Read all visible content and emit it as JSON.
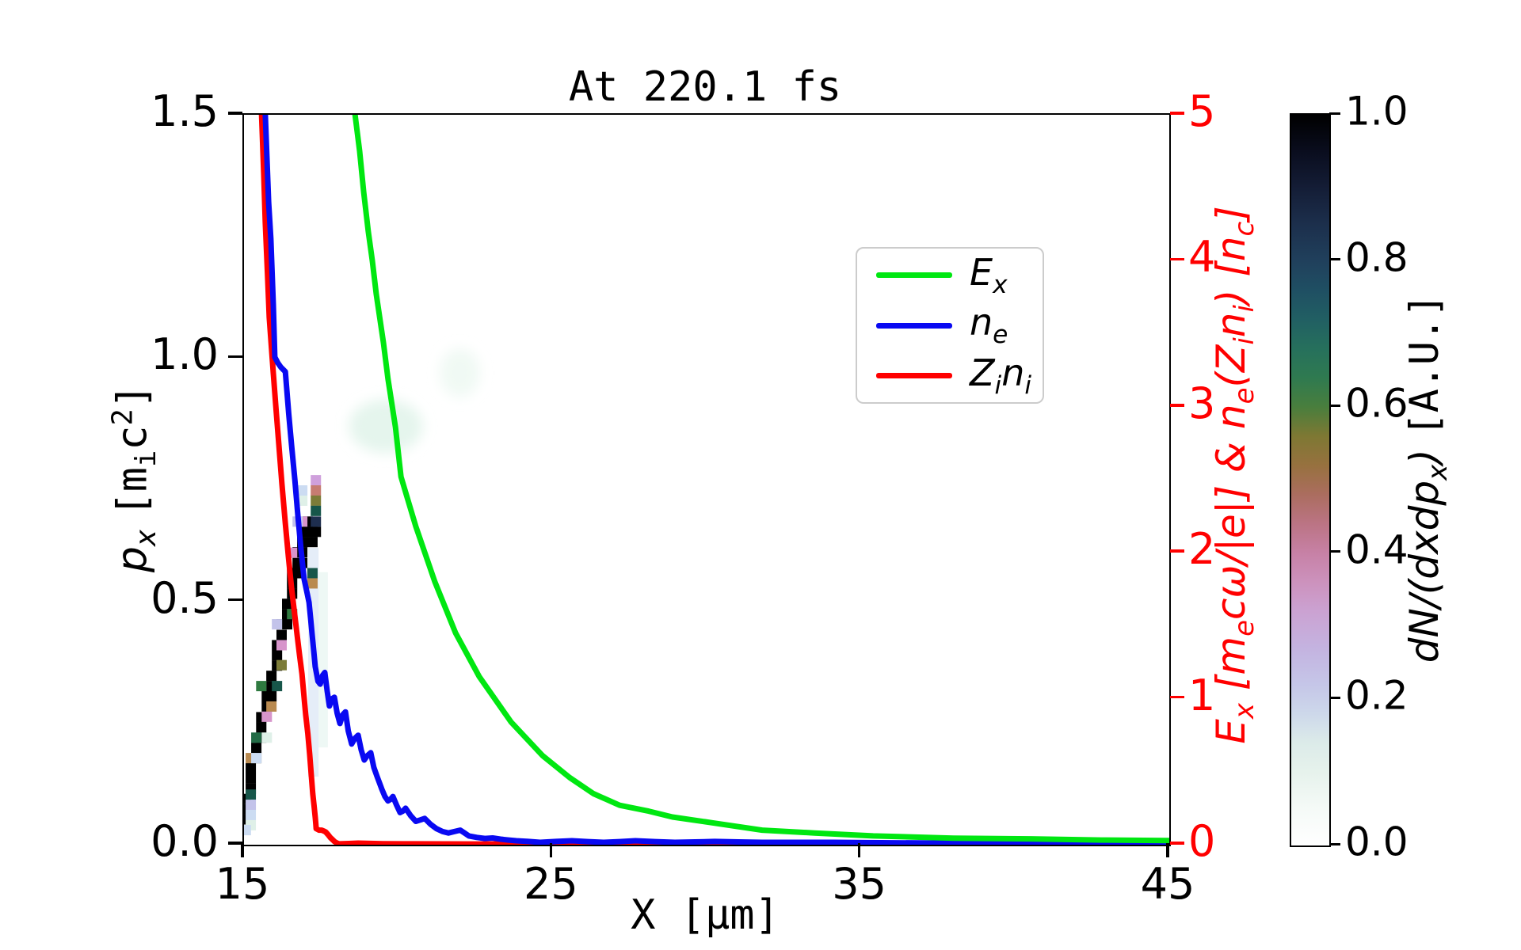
{
  "title": "At 220.1 fs",
  "axes": {
    "x": {
      "label": "X [μm]",
      "range": [
        15,
        45
      ],
      "tick_labels": [
        "15",
        "25",
        "35",
        "45"
      ],
      "tick_values": [
        15,
        25,
        35,
        45
      ]
    },
    "y_left": {
      "label_var": "p_{x}",
      "label_unit": "[m_{i}c^{2}]",
      "range": [
        0,
        1.5
      ],
      "tick_labels": [
        "0.0",
        "0.5",
        "1.0",
        "1.5"
      ],
      "tick_values": [
        0,
        0.5,
        1.0,
        1.5
      ]
    },
    "y_right": {
      "label": "E_{x} [m_{e}cω/|e|] & n_{e}(Z_{i}n_{i}) [n_{c}]",
      "range": [
        0,
        5
      ],
      "tick_labels": [
        "0",
        "1",
        "2",
        "3",
        "4",
        "5"
      ],
      "tick_values": [
        0,
        1,
        2,
        3,
        4,
        5
      ],
      "color": "#ff0000"
    }
  },
  "legend": {
    "entries": [
      {
        "label": "E_{x}",
        "color": "#00e711"
      },
      {
        "label": "n_{e}",
        "color": "#0909f2"
      },
      {
        "label": "Z_{i}n_{i}",
        "color": "#ff0000"
      }
    ]
  },
  "colorbar": {
    "label_var": "dN/(dxdp_{x})",
    "label_unit": "[A.U.]",
    "tick_labels": [
      "0.0",
      "0.2",
      "0.4",
      "0.6",
      "0.8",
      "1.0"
    ],
    "tick_values": [
      0,
      0.2,
      0.4,
      0.6,
      0.8,
      1.0
    ],
    "gradient": [
      [
        0.0,
        "#ffffff"
      ],
      [
        0.05,
        "#f5faf7"
      ],
      [
        0.1,
        "#e6f2ec"
      ],
      [
        0.14,
        "#dcebe9"
      ],
      [
        0.18,
        "#cdd8ea"
      ],
      [
        0.22,
        "#c5c6e8"
      ],
      [
        0.27,
        "#c4b3e0"
      ],
      [
        0.32,
        "#cba2d2"
      ],
      [
        0.36,
        "#cc92bd"
      ],
      [
        0.4,
        "#c781a6"
      ],
      [
        0.44,
        "#bb7484"
      ],
      [
        0.48,
        "#ab6d5f"
      ],
      [
        0.52,
        "#97713f"
      ],
      [
        0.56,
        "#7e7833"
      ],
      [
        0.6,
        "#497e3d"
      ],
      [
        0.64,
        "#2f7a50"
      ],
      [
        0.68,
        "#26705c"
      ],
      [
        0.72,
        "#215f63"
      ],
      [
        0.76,
        "#1f4f63"
      ],
      [
        0.8,
        "#20405c"
      ],
      [
        0.85,
        "#1c2f4c"
      ],
      [
        0.9,
        "#141d36"
      ],
      [
        0.95,
        "#0a0d1e"
      ],
      [
        1.0,
        "#000000"
      ]
    ]
  },
  "chart_data": {
    "type": "line",
    "title": "At 220.1 fs",
    "xlabel": "X [μm]",
    "xlim": [
      15,
      45
    ],
    "ylabel_left": "p_x [m_i c^2]",
    "ylim_left": [
      0,
      1.5
    ],
    "ylabel_right": "E_x [m_e c w/|e|] & n_e(Z_i n_i) [n_c]",
    "ylim_right": [
      0,
      5
    ],
    "grid": false,
    "legend_position": "upper center",
    "series": [
      {
        "name": "E_x",
        "axis": "right",
        "color": "#00e711",
        "width": 7,
        "points": [
          [
            18.6,
            5.0
          ],
          [
            18.75,
            4.75
          ],
          [
            18.88,
            4.47
          ],
          [
            19.03,
            4.2
          ],
          [
            19.16,
            4.0
          ],
          [
            19.29,
            3.77
          ],
          [
            19.52,
            3.44
          ],
          [
            19.67,
            3.19
          ],
          [
            19.91,
            2.86
          ],
          [
            20.09,
            2.52
          ],
          [
            20.57,
            2.18
          ],
          [
            21.19,
            1.8
          ],
          [
            21.86,
            1.45
          ],
          [
            22.63,
            1.15
          ],
          [
            23.66,
            0.84
          ],
          [
            24.68,
            0.61
          ],
          [
            25.56,
            0.46
          ],
          [
            26.33,
            0.35
          ],
          [
            27.18,
            0.27
          ],
          [
            28.12,
            0.23
          ],
          [
            28.89,
            0.19
          ],
          [
            30.18,
            0.15
          ],
          [
            31.8,
            0.1
          ],
          [
            33.5,
            0.08
          ],
          [
            35.4,
            0.06
          ],
          [
            38.0,
            0.045
          ],
          [
            40.5,
            0.04
          ],
          [
            42.8,
            0.032
          ],
          [
            45.0,
            0.028
          ]
        ]
      },
      {
        "name": "n_e",
        "axis": "right",
        "color": "#0909f2",
        "width": 7,
        "points": [
          [
            15.69,
            5.0
          ],
          [
            15.8,
            4.4
          ],
          [
            15.87,
            4.15
          ],
          [
            15.95,
            3.7
          ],
          [
            16.0,
            3.34
          ],
          [
            16.1,
            3.3
          ],
          [
            16.2,
            3.27
          ],
          [
            16.34,
            3.24
          ],
          [
            16.45,
            2.95
          ],
          [
            16.54,
            2.74
          ],
          [
            16.65,
            2.5
          ],
          [
            16.75,
            2.25
          ],
          [
            16.85,
            2.02
          ],
          [
            16.95,
            1.82
          ],
          [
            17.05,
            1.72
          ],
          [
            17.11,
            1.66
          ],
          [
            17.16,
            1.55
          ],
          [
            17.21,
            1.44
          ],
          [
            17.26,
            1.33
          ],
          [
            17.31,
            1.22
          ],
          [
            17.4,
            1.12
          ],
          [
            17.47,
            1.1
          ],
          [
            17.55,
            1.16
          ],
          [
            17.62,
            1.18
          ],
          [
            17.7,
            1.05
          ],
          [
            17.77,
            0.95
          ],
          [
            17.85,
            1.0
          ],
          [
            17.93,
            1.01
          ],
          [
            18.02,
            0.9
          ],
          [
            18.11,
            0.83
          ],
          [
            18.2,
            0.89
          ],
          [
            18.29,
            0.91
          ],
          [
            18.38,
            0.78
          ],
          [
            18.49,
            0.69
          ],
          [
            18.6,
            0.73
          ],
          [
            18.7,
            0.75
          ],
          [
            18.8,
            0.65
          ],
          [
            18.9,
            0.58
          ],
          [
            19.0,
            0.61
          ],
          [
            19.11,
            0.63
          ],
          [
            19.21,
            0.53
          ],
          [
            19.31,
            0.47
          ],
          [
            19.4,
            0.42
          ],
          [
            19.47,
            0.38
          ],
          [
            19.57,
            0.33
          ],
          [
            19.67,
            0.3
          ],
          [
            19.75,
            0.31
          ],
          [
            19.83,
            0.33
          ],
          [
            19.95,
            0.27
          ],
          [
            20.06,
            0.22
          ],
          [
            20.15,
            0.23
          ],
          [
            20.24,
            0.25
          ],
          [
            20.4,
            0.2
          ],
          [
            20.57,
            0.16
          ],
          [
            20.72,
            0.17
          ],
          [
            20.86,
            0.18
          ],
          [
            21.05,
            0.14
          ],
          [
            21.24,
            0.11
          ],
          [
            21.44,
            0.09
          ],
          [
            21.63,
            0.08
          ],
          [
            21.82,
            0.09
          ],
          [
            22.01,
            0.1
          ],
          [
            22.15,
            0.08
          ],
          [
            22.29,
            0.06
          ],
          [
            22.55,
            0.05
          ],
          [
            22.81,
            0.043
          ],
          [
            23.06,
            0.046
          ],
          [
            23.32,
            0.038
          ],
          [
            23.58,
            0.032
          ],
          [
            23.83,
            0.027
          ],
          [
            24.22,
            0.022
          ],
          [
            24.6,
            0.016
          ],
          [
            25.12,
            0.022
          ],
          [
            25.63,
            0.027
          ],
          [
            26.15,
            0.021
          ],
          [
            26.66,
            0.016
          ],
          [
            27.18,
            0.021
          ],
          [
            27.69,
            0.027
          ],
          [
            28.33,
            0.021
          ],
          [
            28.97,
            0.016
          ],
          [
            29.62,
            0.019
          ],
          [
            30.26,
            0.022
          ],
          [
            31.03,
            0.019
          ],
          [
            31.8,
            0.016
          ],
          [
            32.96,
            0.016
          ],
          [
            34.11,
            0.016
          ],
          [
            36.04,
            0.013
          ],
          [
            37.96,
            0.011
          ],
          [
            40.31,
            0.011
          ],
          [
            42.66,
            0.011
          ],
          [
            45.0,
            0.011
          ]
        ]
      },
      {
        "name": "Z_i n_i",
        "axis": "right",
        "color": "#ff0000",
        "width": 7,
        "points": [
          [
            15.57,
            5.0
          ],
          [
            15.64,
            4.6
          ],
          [
            15.69,
            4.26
          ],
          [
            15.76,
            3.92
          ],
          [
            15.82,
            3.61
          ],
          [
            15.89,
            3.4
          ],
          [
            15.95,
            3.23
          ],
          [
            16.04,
            2.98
          ],
          [
            16.13,
            2.74
          ],
          [
            16.23,
            2.47
          ],
          [
            16.34,
            2.2
          ],
          [
            16.44,
            1.97
          ],
          [
            16.54,
            1.76
          ],
          [
            16.63,
            1.6
          ],
          [
            16.72,
            1.44
          ],
          [
            16.8,
            1.3
          ],
          [
            16.88,
            1.17
          ],
          [
            16.94,
            1.03
          ],
          [
            17.0,
            0.89
          ],
          [
            17.07,
            0.76
          ],
          [
            17.13,
            0.62
          ],
          [
            17.18,
            0.48
          ],
          [
            17.23,
            0.35
          ],
          [
            17.27,
            0.27
          ],
          [
            17.31,
            0.19
          ],
          [
            17.33,
            0.14
          ],
          [
            17.34,
            0.11
          ],
          [
            17.43,
            0.1
          ],
          [
            17.52,
            0.1
          ],
          [
            17.59,
            0.094
          ],
          [
            17.65,
            0.087
          ],
          [
            17.73,
            0.068
          ],
          [
            17.8,
            0.049
          ],
          [
            17.87,
            0.035
          ],
          [
            17.93,
            0.022
          ],
          [
            18.0,
            0.013
          ],
          [
            18.08,
            0.006
          ],
          [
            18.4,
            0.008
          ],
          [
            18.7,
            0.011
          ],
          [
            19.5,
            0.007
          ],
          [
            20.5,
            0.006
          ],
          [
            22.55,
            0.005
          ],
          [
            26.0,
            0.006
          ],
          [
            30.26,
            0.005
          ],
          [
            34.0,
            0.006
          ],
          [
            37.96,
            0.005
          ],
          [
            41.0,
            0.006
          ],
          [
            45.0,
            0.005
          ]
        ]
      }
    ],
    "heatmap": {
      "name": "dN/(dxdp_x) phase space",
      "units": "A.U.",
      "cell_size": {
        "dx": 0.334,
        "dp": 0.0212
      },
      "palette": {
        "k": "#000000",
        "plum": "#cfa0dc",
        "rose": "#c67c72",
        "olive": "#7c7c38",
        "teal": "#17564a",
        "navy": "#1e2e4e",
        "pink": "#d795cb",
        "tan": "#b98a50",
        "green": "#2f7a40",
        "dgreen": "#226b46",
        "lav": "#c3c3ea",
        "pblue": "#ccdcf2",
        "pmint": "#dff0e8"
      },
      "cells": [
        [
          15.06,
          0.094,
          "k"
        ],
        [
          15.06,
          0.073,
          "k"
        ],
        [
          15.06,
          0.052,
          "k"
        ],
        [
          15.22,
          0.157,
          "k"
        ],
        [
          15.22,
          0.136,
          "k"
        ],
        [
          15.22,
          0.115,
          "k"
        ],
        [
          15.4,
          0.199,
          "k"
        ],
        [
          15.4,
          0.178,
          "k"
        ],
        [
          15.56,
          0.262,
          "k"
        ],
        [
          15.56,
          0.241,
          "k"
        ],
        [
          15.56,
          0.22,
          "k"
        ],
        [
          15.74,
          0.305,
          "k"
        ],
        [
          15.74,
          0.284,
          "k"
        ],
        [
          15.89,
          0.347,
          "k"
        ],
        [
          15.89,
          0.326,
          "k"
        ],
        [
          15.89,
          0.305,
          "k"
        ],
        [
          16.07,
          0.41,
          "k"
        ],
        [
          16.07,
          0.389,
          "k"
        ],
        [
          16.07,
          0.368,
          "k"
        ],
        [
          16.22,
          0.453,
          "k"
        ],
        [
          16.22,
          0.431,
          "k"
        ],
        [
          16.4,
          0.495,
          "k"
        ],
        [
          16.4,
          0.474,
          "k"
        ],
        [
          16.4,
          0.453,
          "k"
        ],
        [
          16.56,
          0.558,
          "k"
        ],
        [
          16.56,
          0.537,
          "k"
        ],
        [
          16.56,
          0.516,
          "k"
        ],
        [
          16.74,
          0.601,
          "k"
        ],
        [
          16.74,
          0.579,
          "k"
        ],
        [
          16.74,
          0.558,
          "k"
        ],
        [
          16.89,
          0.643,
          "k"
        ],
        [
          16.89,
          0.622,
          "k"
        ],
        [
          16.89,
          0.601,
          "k"
        ],
        [
          16.89,
          0.579,
          "k"
        ],
        [
          17.07,
          0.664,
          "k"
        ],
        [
          17.07,
          0.643,
          "k"
        ],
        [
          17.22,
          0.643,
          "k"
        ],
        [
          17.22,
          0.622,
          "k"
        ],
        [
          17.33,
          0.643,
          "k"
        ],
        [
          17.33,
          0.749,
          "plum"
        ],
        [
          17.33,
          0.728,
          "rose"
        ],
        [
          17.33,
          0.707,
          "olive"
        ],
        [
          17.33,
          0.686,
          "teal"
        ],
        [
          17.33,
          0.664,
          "navy"
        ],
        [
          16.89,
          0.664,
          "pink"
        ],
        [
          17.22,
          0.558,
          "teal"
        ],
        [
          17.22,
          0.537,
          "tan"
        ],
        [
          16.56,
          0.474,
          "green"
        ],
        [
          16.22,
          0.41,
          "pink"
        ],
        [
          16.22,
          0.369,
          "olive"
        ],
        [
          16.07,
          0.326,
          "teal"
        ],
        [
          15.56,
          0.326,
          "green"
        ],
        [
          15.89,
          0.284,
          "tan"
        ],
        [
          15.74,
          0.263,
          "pink"
        ],
        [
          15.4,
          0.22,
          "dgreen"
        ],
        [
          15.22,
          0.178,
          "tan"
        ],
        [
          15.22,
          0.103,
          "teal"
        ],
        [
          15.22,
          0.082,
          "lav"
        ],
        [
          15.22,
          0.061,
          "pblue"
        ],
        [
          15.22,
          0.04,
          "pmint"
        ],
        [
          15.06,
          0.03,
          "pblue"
        ],
        [
          16.07,
          0.453,
          "lav"
        ],
        [
          15.4,
          0.178,
          "pblue"
        ],
        [
          15.74,
          0.22,
          "pmint"
        ],
        [
          16.56,
          0.6,
          "pink"
        ],
        [
          16.74,
          0.664,
          "lav"
        ],
        [
          16.89,
          0.707,
          "pmint"
        ],
        [
          16.89,
          0.728,
          "pblue"
        ]
      ],
      "streaks": [
        {
          "x1": 17.08,
          "x2": 17.42,
          "p1": 0.14,
          "p2": 0.61,
          "color": "rgba(197,216,240,0.45)"
        },
        {
          "x1": 17.42,
          "x2": 17.72,
          "p1": 0.2,
          "p2": 0.56,
          "color": "rgba(224,242,237,0.55)"
        }
      ],
      "haze": [
        {
          "cx": 19.6,
          "cp": 0.86,
          "rx": 1.2,
          "rp": 0.055,
          "color": "rgba(225,243,234,0.85)"
        },
        {
          "cx": 22.0,
          "cp": 0.97,
          "rx": 0.65,
          "rp": 0.05,
          "color": "rgba(233,247,240,0.7)"
        }
      ]
    }
  }
}
